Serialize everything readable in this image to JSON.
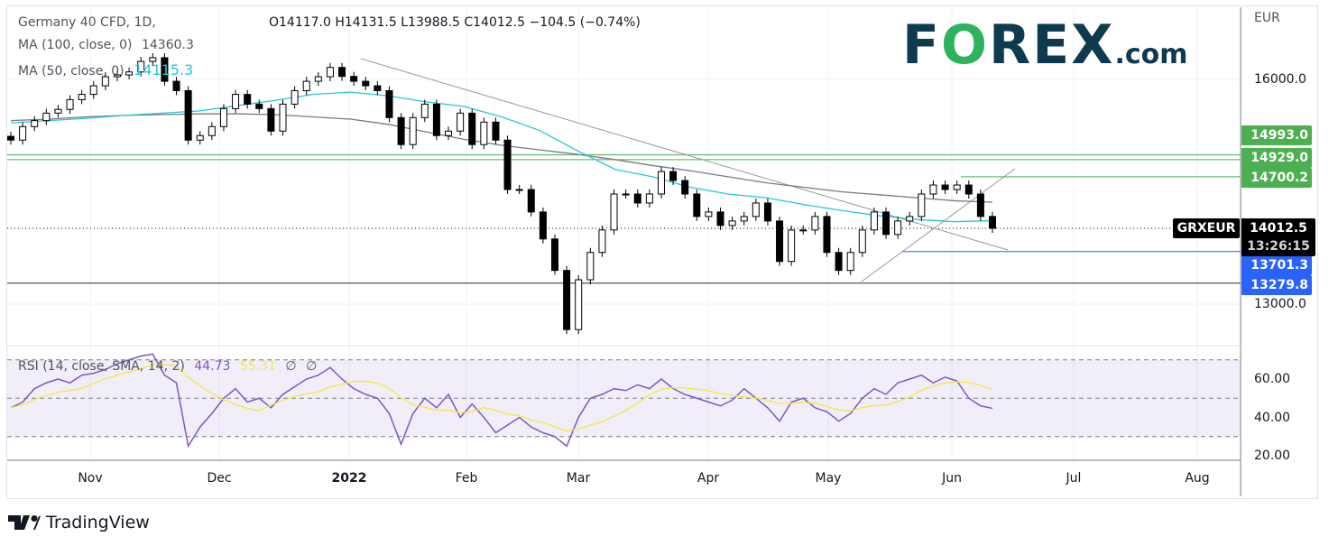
{
  "header": {
    "symbol_title": "Germany 40 CFD, 1D,",
    "ohlc": "O14117.0  H14131.5  L13988.5  C14012.5  −104.5 (−0.74%)",
    "ma100_label": "MA (100, close, 0)",
    "ma100_value": "14360.3",
    "ma50_label": "MA (50, close, 0)",
    "ma50_value": "14115.3"
  },
  "logo": {
    "text_f": "F",
    "text_o": "O",
    "text_rex": "REX",
    "text_com": ".com"
  },
  "currency": "EUR",
  "price_axis": {
    "ticks": [
      "16000.0",
      "13000.0"
    ]
  },
  "price_tags": [
    {
      "value": "14993.0",
      "color": "#4caf50"
    },
    {
      "value": "14929.0",
      "color": "#4caf50"
    },
    {
      "value": "14700.2",
      "color": "#4caf50"
    },
    {
      "value": "13701.3",
      "color": "#2962ff"
    },
    {
      "value": "13279.8",
      "color": "#2962ff"
    }
  ],
  "last_price": {
    "symbol": "GRXEUR",
    "value": "14012.5",
    "countdown": "13:26:15"
  },
  "rsi": {
    "label": "RSI (14, close, SMA, 14, 2)",
    "value": "44.73",
    "sma_value": "55.31",
    "extra1": "∅",
    "extra2": "∅",
    "ticks": [
      "60.00",
      "40.00",
      "20.00"
    ]
  },
  "time_axis": [
    "Nov",
    "Dec",
    "2022",
    "Feb",
    "Mar",
    "Apr",
    "May",
    "Jun",
    "Jul",
    "Aug"
  ],
  "branding": "TradingView",
  "chart_data": {
    "type": "candlestick",
    "ylim": [
      12400,
      16800
    ],
    "levels": [
      14993.0,
      14929.0,
      14700.2,
      13701.3,
      13279.8
    ],
    "close": [
      15190,
      15370,
      15450,
      15550,
      15600,
      15730,
      15800,
      15915,
      16036,
      16060,
      16100,
      16240,
      16290,
      15975,
      15850,
      15190,
      15250,
      15370,
      15610,
      15800,
      15670,
      15610,
      15310,
      15670,
      15850,
      15975,
      16036,
      16160,
      16040,
      15975,
      15915,
      15850,
      15490,
      15130,
      15490,
      15670,
      15250,
      15310,
      15550,
      15130,
      15430,
      15190,
      14530,
      14530,
      14230,
      13870,
      13450,
      12660,
      13325,
      13690,
      13990,
      14470,
      14470,
      14350,
      14470,
      14770,
      14650,
      14470,
      14170,
      14230,
      14050,
      14110,
      14170,
      14350,
      14110,
      13570,
      13990,
      13990,
      14170,
      13690,
      13450,
      13690,
      13990,
      14230,
      13930,
      14110,
      14170,
      14470,
      14590,
      14530,
      14590,
      14470,
      14170,
      14012.5
    ],
    "ma100": [
      15450,
      15470,
      15500,
      15520,
      15530,
      15540,
      15540,
      15530,
      15500,
      15470,
      15400,
      15300,
      15200,
      15120,
      15060,
      15000,
      14930,
      14850,
      14780,
      14700,
      14620,
      14560,
      14500,
      14460,
      14420,
      14380,
      14360.3
    ],
    "ma50": [
      15420,
      15450,
      15480,
      15520,
      15550,
      15580,
      15650,
      15720,
      15800,
      15830,
      15780,
      15700,
      15640,
      15500,
      15320,
      15050,
      14800,
      14700,
      14560,
      14470,
      14420,
      14330,
      14250,
      14180,
      14130,
      14100,
      14115.3
    ],
    "rsi": [
      45,
      48,
      55,
      58,
      60,
      58,
      62,
      63,
      65,
      68,
      70,
      72,
      73,
      62,
      58,
      25,
      35,
      42,
      50,
      55,
      48,
      50,
      45,
      52,
      56,
      60,
      62,
      66,
      60,
      55,
      52,
      50,
      42,
      26,
      42,
      50,
      45,
      52,
      40,
      47,
      40,
      32,
      36,
      40,
      35,
      32,
      30,
      25,
      40,
      50,
      52,
      55,
      54,
      57,
      55,
      60,
      55,
      52,
      50,
      48,
      46,
      49,
      55,
      50,
      45,
      38,
      48,
      50,
      45,
      43,
      38,
      42,
      50,
      55,
      52,
      58,
      60,
      62,
      58,
      61,
      59,
      50,
      46,
      44.73
    ]
  }
}
